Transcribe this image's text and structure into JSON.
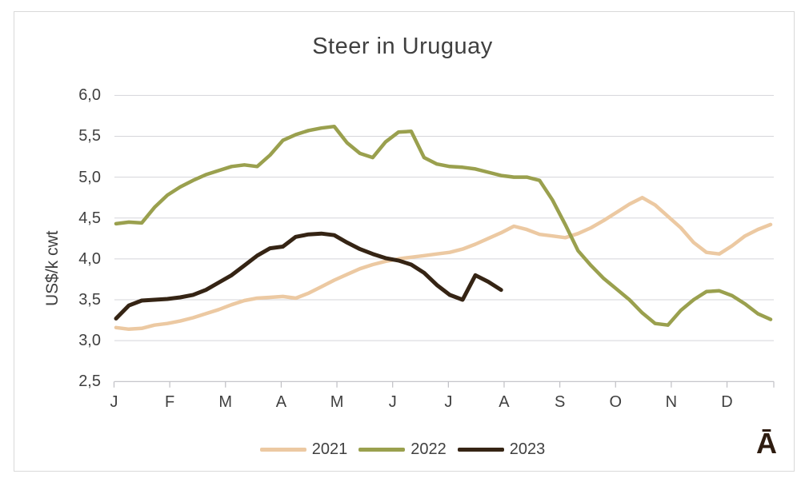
{
  "title": "Steer in Uruguay",
  "y_axis": {
    "label": "US$/k cwt",
    "tick_labels": [
      "6,0",
      "5,5",
      "5,0",
      "4,5",
      "4,0",
      "3,5",
      "3,0",
      "2,5"
    ],
    "min": 2.5,
    "max": 6.0,
    "step": 0.5
  },
  "x_axis": {
    "months": [
      "J",
      "F",
      "M",
      "A",
      "M",
      "J",
      "J",
      "A",
      "S",
      "O",
      "N",
      "D"
    ]
  },
  "legend": [
    {
      "label": "2021",
      "color": "#ecc9a2"
    },
    {
      "label": "2022",
      "color": "#9aa04e"
    },
    {
      "label": "2023",
      "color": "#352414"
    }
  ],
  "watermark": "Ā",
  "colors": {
    "text": "#404040",
    "gridline": "#d5d5da",
    "axis_line": "#bfbfc4",
    "frame_border": "#d9d9d9",
    "series_2021": "#ecc9a2",
    "series_2022": "#9aa04e",
    "series_2023": "#352414"
  },
  "chart_data": {
    "type": "line",
    "title": "Steer in Uruguay",
    "xlabel": "",
    "ylabel": "US$/k cwt",
    "ylim": [
      2.5,
      6.0
    ],
    "grid": true,
    "legend_position": "bottom",
    "x_resolution": "weekly",
    "x_months": [
      "J",
      "F",
      "M",
      "A",
      "M",
      "J",
      "J",
      "A",
      "S",
      "O",
      "N",
      "D"
    ],
    "series": [
      {
        "name": "2021",
        "color": "#ecc9a2",
        "values": [
          3.16,
          3.14,
          3.15,
          3.19,
          3.21,
          3.24,
          3.28,
          3.33,
          3.38,
          3.44,
          3.49,
          3.52,
          3.53,
          3.54,
          3.52,
          3.58,
          3.66,
          3.74,
          3.81,
          3.88,
          3.93,
          3.97,
          4.0,
          4.02,
          4.04,
          4.06,
          4.08,
          4.12,
          4.18,
          4.25,
          4.32,
          4.4,
          4.36,
          4.3,
          4.28,
          4.26,
          4.31,
          4.38,
          4.47,
          4.57,
          4.67,
          4.75,
          4.66,
          4.52,
          4.38,
          4.2,
          4.08,
          4.06,
          4.16,
          4.28,
          4.36,
          4.42
        ]
      },
      {
        "name": "2022",
        "color": "#9aa04e",
        "values": [
          4.43,
          4.45,
          4.44,
          4.63,
          4.78,
          4.88,
          4.96,
          5.03,
          5.08,
          5.13,
          5.15,
          5.13,
          5.27,
          5.45,
          5.52,
          5.57,
          5.6,
          5.62,
          5.42,
          5.29,
          5.24,
          5.43,
          5.55,
          5.56,
          5.24,
          5.16,
          5.13,
          5.12,
          5.1,
          5.06,
          5.02,
          5.0,
          5.0,
          4.96,
          4.72,
          4.42,
          4.1,
          3.92,
          3.76,
          3.63,
          3.5,
          3.34,
          3.21,
          3.19,
          3.37,
          3.5,
          3.6,
          3.61,
          3.55,
          3.45,
          3.33,
          3.26
        ]
      },
      {
        "name": "2023",
        "color": "#352414",
        "values": [
          3.27,
          3.43,
          3.49,
          3.5,
          3.51,
          3.53,
          3.56,
          3.62,
          3.71,
          3.8,
          3.92,
          4.04,
          4.13,
          4.15,
          4.27,
          4.3,
          4.31,
          4.29,
          4.2,
          4.12,
          4.06,
          4.01,
          3.98,
          3.93,
          3.83,
          3.68,
          3.56,
          3.5,
          3.8,
          3.72,
          3.62
        ]
      }
    ]
  }
}
